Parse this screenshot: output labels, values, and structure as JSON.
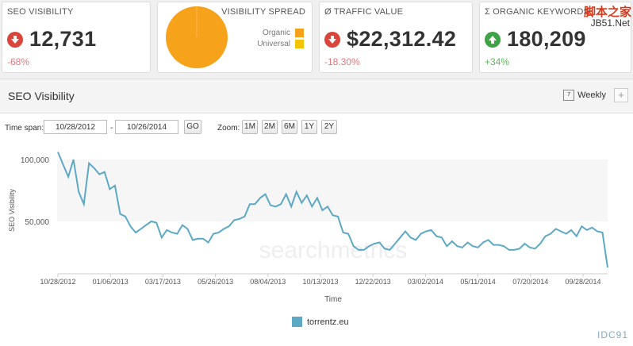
{
  "cards": {
    "seo": {
      "title": "SEO VISIBILITY",
      "value": "12,731",
      "change": "-68%"
    },
    "spread": {
      "title": "VISIBILITY SPREAD",
      "legend": [
        "Organic",
        "Universal"
      ],
      "colors": {
        "organic": "#f7a21b",
        "universal": "#f5c400"
      }
    },
    "traffic": {
      "title": "Ø TRAFFIC VALUE",
      "value": "$22,312.42",
      "change": "-18.30%"
    },
    "keywords": {
      "title": "Σ ORGANIC KEYWORDS",
      "value": "180,209",
      "change": "+34%"
    }
  },
  "watermark": {
    "line1": "脚本之家",
    "line2": "JB51.Net",
    "bottom": "IDC91"
  },
  "panel": {
    "title": "SEO Visibility",
    "interval": "Weekly",
    "calendar_day": "7",
    "add": "+"
  },
  "controls": {
    "timespan_label": "Time span:",
    "from": "10/28/2012",
    "dash": "-",
    "to": "10/26/2014",
    "go": "GO",
    "zoom_label": "Zoom:",
    "zoom": [
      "1M",
      "2M",
      "6M",
      "1Y",
      "2Y"
    ]
  },
  "chart_data": {
    "type": "line",
    "ylabel": "SEO Visibility",
    "xlabel": "Time",
    "watermark": "searchmetrics",
    "y_ticks": [
      "100,000",
      "50,000"
    ],
    "y_tick_values": [
      100000,
      50000
    ],
    "x_ticks": [
      "10/28/2012",
      "01/06/2013",
      "03/17/2013",
      "05/26/2013",
      "08/04/2013",
      "10/13/2013",
      "12/22/2013",
      "03/02/2014",
      "05/11/2014",
      "07/20/2014",
      "09/28/2014"
    ],
    "ylim": [
      0,
      120000
    ],
    "series": [
      {
        "name": "torrentz.eu",
        "color": "#5da8c4",
        "values": [
          106000,
          96000,
          86000,
          100000,
          74000,
          64000,
          97000,
          93000,
          88000,
          90000,
          76000,
          79000,
          56000,
          54000,
          46000,
          41000,
          44000,
          47000,
          50000,
          49000,
          37000,
          43000,
          41000,
          40000,
          47000,
          44000,
          35000,
          36000,
          36000,
          33000,
          40000,
          41000,
          44000,
          46000,
          51000,
          52000,
          54000,
          64000,
          64000,
          69000,
          72000,
          63000,
          62000,
          64000,
          72000,
          62000,
          74000,
          65000,
          71000,
          62000,
          69000,
          59000,
          62000,
          55000,
          54000,
          41000,
          40000,
          30000,
          27000,
          27000,
          30000,
          32000,
          33000,
          28000,
          27000,
          32000,
          37000,
          42000,
          37000,
          35000,
          40000,
          42000,
          43000,
          38000,
          37000,
          30000,
          34000,
          30000,
          29000,
          33000,
          30000,
          29000,
          33000,
          35000,
          31000,
          31000,
          30000,
          27000,
          27000,
          28000,
          32000,
          29000,
          28000,
          32000,
          38000,
          40000,
          44000,
          42000,
          40000,
          43000,
          38000,
          46000,
          43000,
          45000,
          42000,
          41000,
          12731
        ]
      }
    ]
  }
}
